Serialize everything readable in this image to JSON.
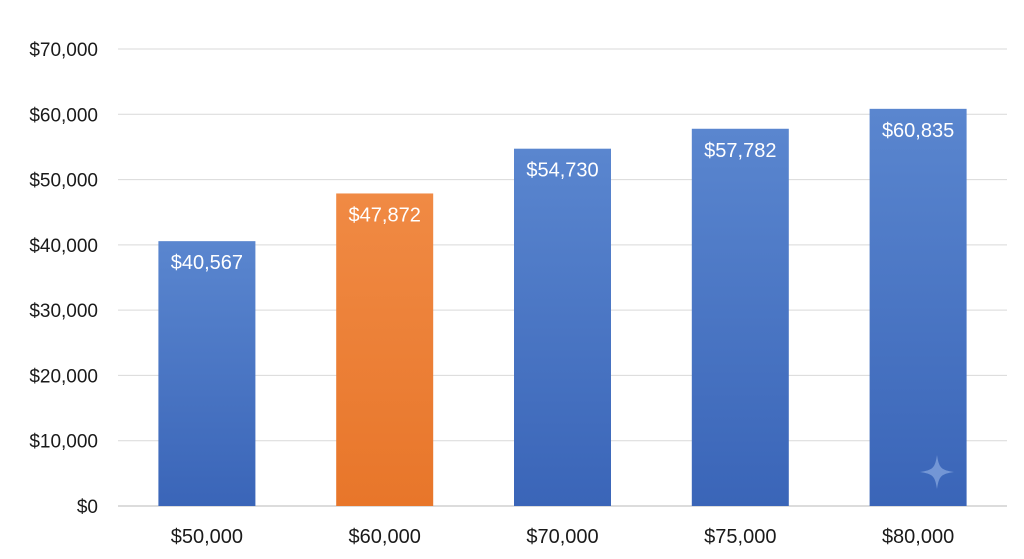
{
  "chart_data": {
    "type": "bar",
    "categories": [
      "$50,000",
      "$60,000",
      "$70,000",
      "$75,000",
      "$80,000"
    ],
    "values": [
      40567,
      47872,
      54730,
      57782,
      60835
    ],
    "value_labels": [
      "$40,567",
      "$47,872",
      "$54,730",
      "$57,782",
      "$60,835"
    ],
    "bar_colors": [
      "#4472C4",
      "#ED7D31",
      "#4472C4",
      "#4472C4",
      "#4472C4"
    ],
    "title": "",
    "xlabel": "",
    "ylabel": "",
    "ylim": [
      0,
      70000
    ],
    "yticks": [
      0,
      10000,
      20000,
      30000,
      40000,
      50000,
      60000,
      70000
    ],
    "ytick_labels": [
      "$0",
      "$10,000",
      "$20,000",
      "$30,000",
      "$40,000",
      "$50,000",
      "$60,000",
      "$70,000"
    ],
    "grid": true,
    "legend": "none"
  },
  "colors": {
    "primary_bar": "#4472C4",
    "highlight_bar": "#ED7D31",
    "gridline": "#d9d9d9"
  },
  "decorations": {
    "watermark_icon": "sparkle-icon"
  }
}
